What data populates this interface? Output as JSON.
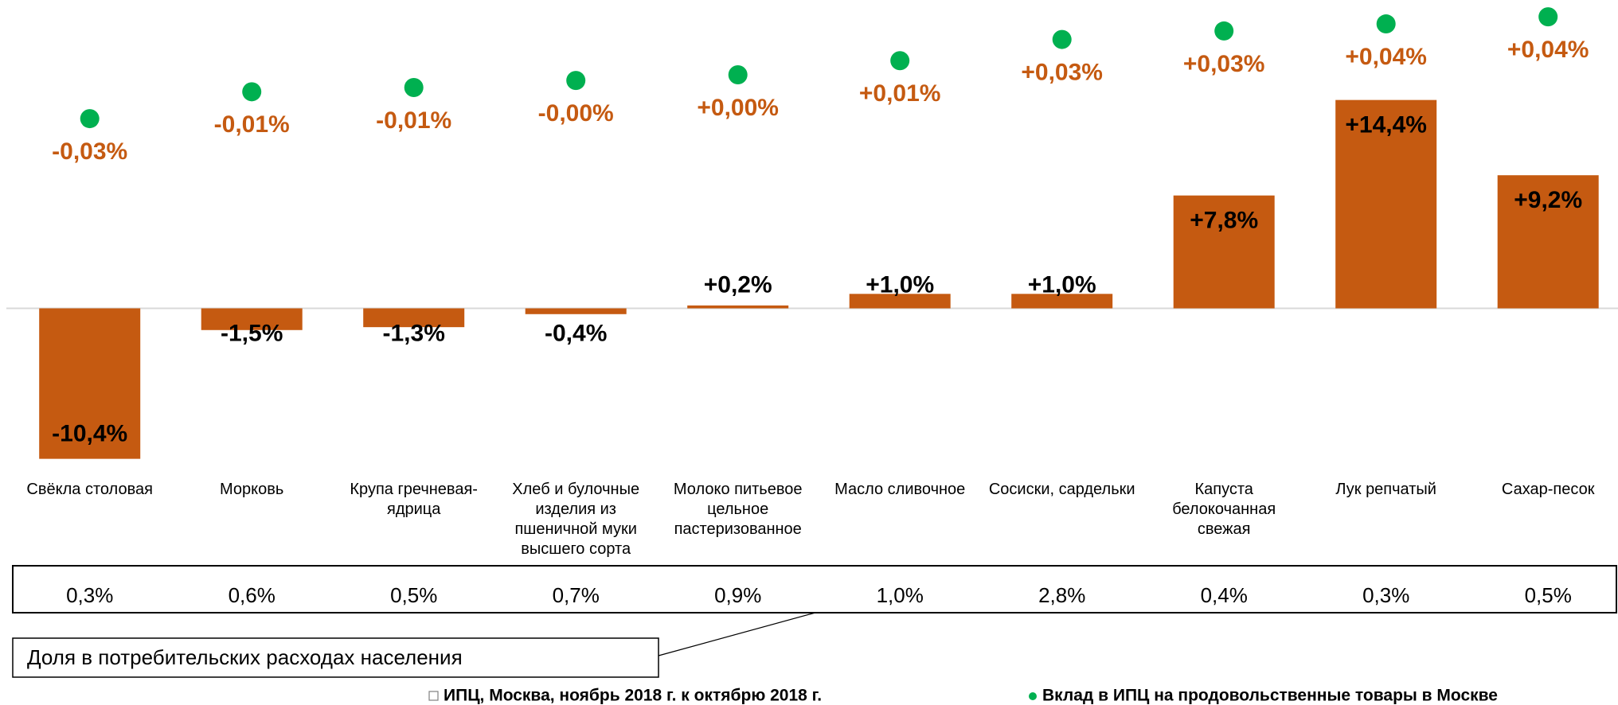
{
  "chart_data": {
    "type": "bar",
    "categories": [
      "Свёкла столовая",
      "Морковь",
      "Крупа гречневая-ядрица",
      "Хлеб и булочные изделия из пшеничной муки высшего сорта",
      "Молоко питьевое цельное пастеризованное",
      "Масло сливочное",
      "Сосиски, сардельки",
      "Капуста белокочанная свежая",
      "Лук репчатый",
      "Сахар-песок"
    ],
    "series": [
      {
        "name": "ИПЦ, Москва, ноябрь 2018 г. к октябрю 2018 г.",
        "type": "bar",
        "color": "#c55a11",
        "values": [
          -10.4,
          -1.5,
          -1.3,
          -0.4,
          0.2,
          1.0,
          1.0,
          7.8,
          14.4,
          9.2
        ],
        "value_labels": [
          "-10,4%",
          "-1,5%",
          "-1,3%",
          "-0,4%",
          "+0,2%",
          "+1,0%",
          "+1,0%",
          "+7,8%",
          "+14,4%",
          "+9,2%"
        ]
      },
      {
        "name": "Вклад в ИПЦ на продовольственные товары в Москве",
        "type": "scatter",
        "axis": "y2",
        "color": "#00b050",
        "label_color": "#c55a11",
        "values": [
          -0.03,
          -0.011,
          -0.008,
          -0.003,
          0.001,
          0.011,
          0.026,
          0.032,
          0.037,
          0.042
        ],
        "value_labels": [
          "-0,03%",
          "-0,01%",
          "-0,01%",
          "-0,00%",
          "+0,00%",
          "+0,01%",
          "+0,03%",
          "+0,03%",
          "+0,04%",
          "+0,04%"
        ]
      }
    ],
    "ylim": [
      -10.75,
      21.31
    ],
    "y2lim": [
      -0.2742,
      0.0539
    ],
    "shares": [
      "0,3%",
      "0,6%",
      "0,5%",
      "0,7%",
      "0,9%",
      "1,0%",
      "2,8%",
      "0,4%",
      "0,3%",
      "0,5%"
    ],
    "shares_label": "Доля в потребительских расходах населения"
  }
}
